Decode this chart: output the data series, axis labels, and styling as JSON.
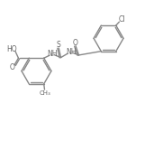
{
  "fig_width": 1.61,
  "fig_height": 1.57,
  "dpi": 100,
  "bond_color": "#888888",
  "lw": 1.0,
  "text_color": "#666666",
  "fs": 5.5,
  "fs_small": 5.0,
  "r": 0.105,
  "xlim": [
    0.0,
    1.0
  ],
  "ylim": [
    0.0,
    1.0
  ]
}
